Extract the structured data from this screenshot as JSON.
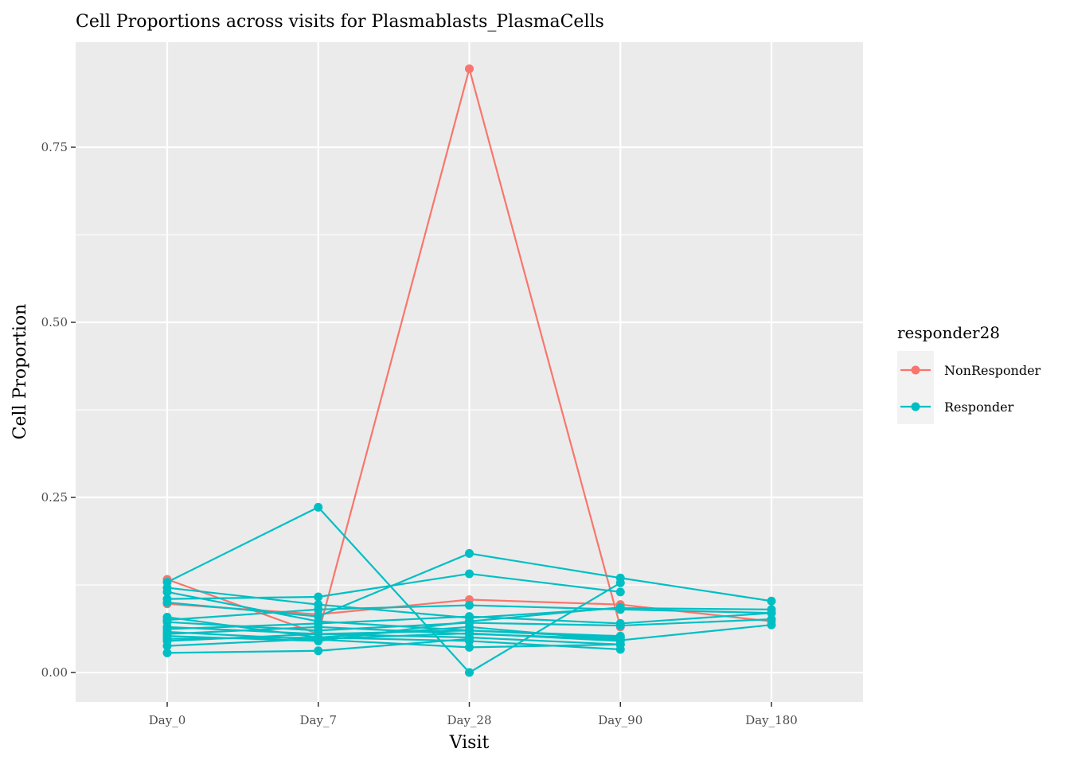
{
  "chart_data": {
    "type": "line",
    "title": "Cell Proportions across visits for Plasmablasts_PlasmaCells",
    "xlabel": "Visit",
    "ylabel": "Cell Proportion",
    "categories": [
      "Day_0",
      "Day_7",
      "Day_28",
      "Day_90",
      "Day_180"
    ],
    "ylim": [
      -0.042,
      0.9
    ],
    "y_ticks": [
      0,
      0.25,
      0.5,
      0.75
    ],
    "y_tick_labels": [
      "0.00",
      "0.25",
      "0.50",
      "0.75"
    ],
    "y_minor_ticks": [
      0.125,
      0.375,
      0.625
    ],
    "grid": true,
    "legend": {
      "title": "responder28",
      "placement": "right",
      "entries": [
        {
          "name": "NonResponder",
          "color": "#F8766D"
        },
        {
          "name": "Responder",
          "color": "#00BFC4"
        }
      ]
    },
    "series": [
      {
        "group": "NonResponder",
        "values": [
          0.133,
          0.055,
          0.862,
          0.065,
          null
        ]
      },
      {
        "group": "NonResponder",
        "values": [
          0.098,
          0.083,
          0.104,
          0.097,
          0.073
        ]
      },
      {
        "group": "Responder",
        "values": [
          0.129,
          0.236,
          0.0,
          0.128,
          null
        ]
      },
      {
        "group": "Responder",
        "values": [
          0.121,
          0.097,
          0.078,
          0.092,
          0.09
        ]
      },
      {
        "group": "Responder",
        "values": [
          0.115,
          0.073,
          0.06,
          0.05,
          null
        ]
      },
      {
        "group": "Responder",
        "values": [
          0.105,
          0.108,
          0.141,
          0.115,
          null
        ]
      },
      {
        "group": "Responder",
        "values": [
          0.1,
          0.08,
          0.17,
          0.135,
          0.102
        ]
      },
      {
        "group": "Responder",
        "values": [
          0.079,
          0.05,
          0.065,
          0.046,
          0.068
        ]
      },
      {
        "group": "Responder",
        "values": [
          0.075,
          0.09,
          0.096,
          0.09,
          0.085
        ]
      },
      {
        "group": "Responder",
        "values": [
          0.072,
          0.06,
          0.071,
          0.067,
          0.076
        ]
      },
      {
        "group": "Responder",
        "values": [
          0.065,
          0.055,
          0.05,
          0.04,
          null
        ]
      },
      {
        "group": "Responder",
        "values": [
          0.062,
          0.07,
          0.08,
          0.07,
          0.085
        ]
      },
      {
        "group": "Responder",
        "values": [
          0.058,
          0.047,
          0.036,
          0.04,
          null
        ]
      },
      {
        "group": "Responder",
        "values": [
          0.055,
          0.065,
          0.055,
          0.048,
          null
        ]
      },
      {
        "group": "Responder",
        "values": [
          0.052,
          0.045,
          0.073,
          0.093,
          null
        ]
      },
      {
        "group": "Responder",
        "values": [
          0.048,
          0.05,
          0.045,
          0.033,
          null
        ]
      },
      {
        "group": "Responder",
        "values": [
          0.045,
          0.055,
          0.06,
          0.052,
          null
        ]
      },
      {
        "group": "Responder",
        "values": [
          0.038,
          0.048,
          0.056,
          0.045,
          null
        ]
      },
      {
        "group": "Responder",
        "values": [
          0.028,
          0.031,
          0.048,
          null,
          null
        ]
      }
    ]
  }
}
